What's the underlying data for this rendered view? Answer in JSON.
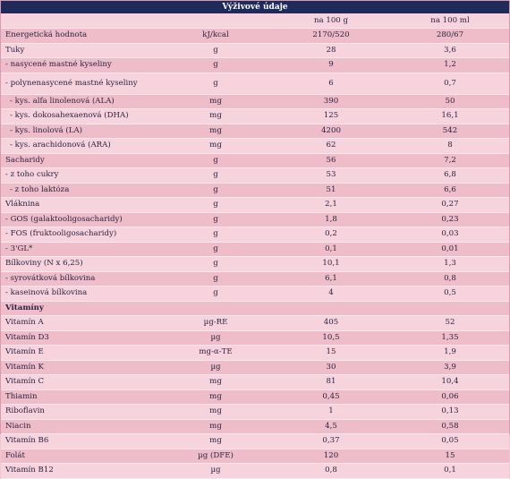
{
  "title": "Výživové údaje",
  "header": {
    "name": "",
    "unit": "",
    "col1": "na 100 g",
    "col2": "na 100 ml"
  },
  "rows": [
    {
      "name": "Energetická hodnota",
      "unit": "kJ/kcal",
      "v1": "2170/520",
      "v2": "280/67"
    },
    {
      "name": "Tuky",
      "unit": "g",
      "v1": "28",
      "v2": "3,6"
    },
    {
      "name": "- nasycené mastné kyseliny",
      "unit": "g",
      "v1": "9",
      "v2": "1,2"
    },
    {
      "name": "- polynenasycené mastné kyseliny",
      "unit": "g",
      "v1": "6",
      "v2": "0,7",
      "tall": true
    },
    {
      "name": "- kys. alfa linolenová (ALA)",
      "unit": "mg",
      "v1": "390",
      "v2": "50",
      "indent": true
    },
    {
      "name": "- kys. dokosahexaenová (DHA)",
      "unit": "mg",
      "v1": "125",
      "v2": "16,1",
      "indent": true
    },
    {
      "name": "- kys. linolová (LA)",
      "unit": "mg",
      "v1": "4200",
      "v2": "542",
      "indent": true
    },
    {
      "name": "- kys. arachidonová (ARA)",
      "unit": "mg",
      "v1": "62",
      "v2": "8",
      "indent": true
    },
    {
      "name": "Sacharidy",
      "unit": "g",
      "v1": "56",
      "v2": "7,2"
    },
    {
      "name": "- z toho cukry",
      "unit": "g",
      "v1": "53",
      "v2": "6,8"
    },
    {
      "name": "- z toho laktóza",
      "unit": "g",
      "v1": "51",
      "v2": "6,6",
      "indent": true
    },
    {
      "name": "Vláknina",
      "unit": "g",
      "v1": "2,1",
      "v2": "0,27"
    },
    {
      "name": "- GOS (galaktooligosacharidy)",
      "unit": "g",
      "v1": "1,8",
      "v2": "0,23"
    },
    {
      "name": "- FOS (fruktooligosacharidy)",
      "unit": "g",
      "v1": "0,2",
      "v2": "0,03"
    },
    {
      "name": "- 3'GL*",
      "unit": "g",
      "v1": "0,1",
      "v2": "0,01"
    },
    {
      "name": "Bílkoviny (N x 6,25)",
      "unit": "g",
      "v1": "10,1",
      "v2": "1,3"
    },
    {
      "name": "- syrovátková bílkovina",
      "unit": "g",
      "v1": "6,1",
      "v2": "0,8"
    },
    {
      "name": "- kaseinová bílkovina",
      "unit": "g",
      "v1": "4",
      "v2": "0,5"
    },
    {
      "name": "Vitamíny",
      "unit": "",
      "v1": "",
      "v2": "",
      "section": true
    },
    {
      "name": "Vitamín A",
      "unit": "µg-RE",
      "v1": "405",
      "v2": "52"
    },
    {
      "name": "Vitamín D3",
      "unit": "µg",
      "v1": "10,5",
      "v2": "1,35"
    },
    {
      "name": "Vitamín E",
      "unit": "mg-α-TE",
      "v1": "15",
      "v2": "1,9"
    },
    {
      "name": "Vitamín K",
      "unit": "µg",
      "v1": "30",
      "v2": "3,9"
    },
    {
      "name": "Vitamín C",
      "unit": "mg",
      "v1": "81",
      "v2": "10,4"
    },
    {
      "name": "Thiamin",
      "unit": "mg",
      "v1": "0,45",
      "v2": "0,06"
    },
    {
      "name": "Riboflavin",
      "unit": "mg",
      "v1": "1",
      "v2": "0,13"
    },
    {
      "name": "Niacin",
      "unit": "mg",
      "v1": "4,5",
      "v2": "0,58"
    },
    {
      "name": "Vitamín B6",
      "unit": "mg",
      "v1": "0,37",
      "v2": "0,05"
    },
    {
      "name": "Folát",
      "unit": "µg (DFE)",
      "v1": "120",
      "v2": "15"
    },
    {
      "name": "Vitamín B12",
      "unit": "µg",
      "v1": "0,8",
      "v2": "0,1"
    }
  ]
}
